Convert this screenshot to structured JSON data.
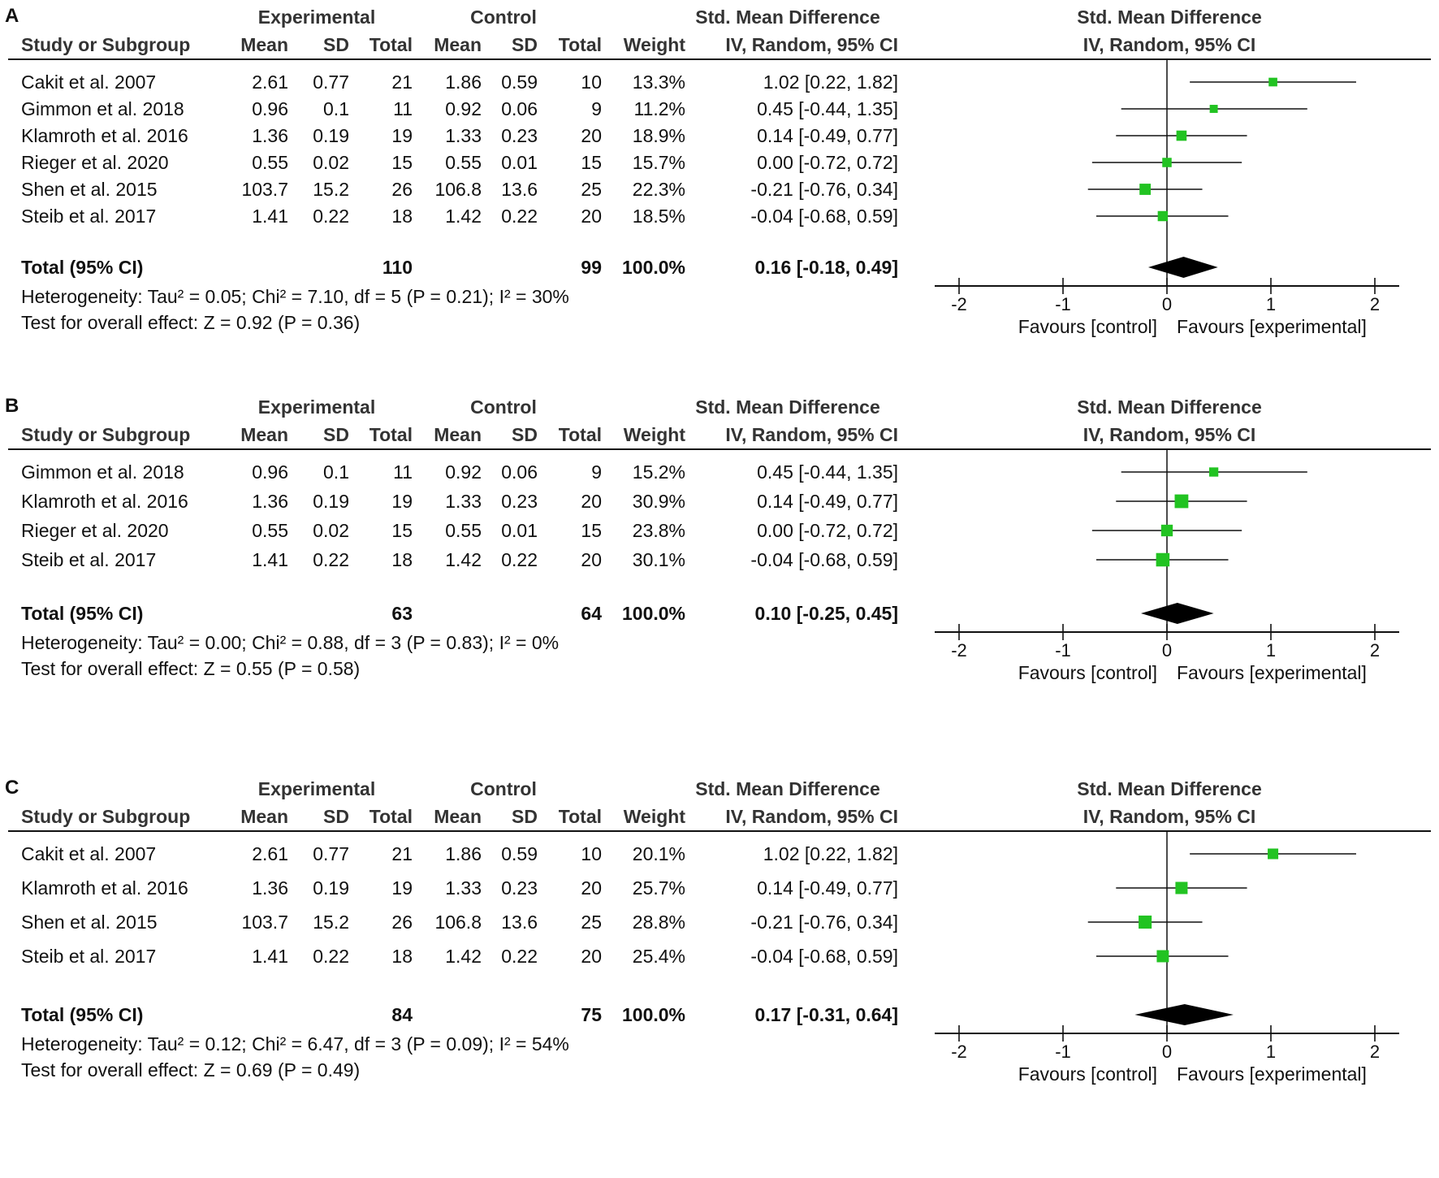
{
  "headers": {
    "experimental": "Experimental",
    "control": "Control",
    "smd_group": "Std. Mean Difference",
    "study": "Study or Subgroup",
    "mean": "Mean",
    "sd": "SD",
    "total": "Total",
    "weight": "Weight",
    "method": "IV, Random, 95% CI",
    "plot_title": "Std. Mean Difference",
    "plot_method": "IV, Random, 95% CI"
  },
  "colors": {
    "marker": "#22c322",
    "diamond": "#000000",
    "text": "#111111"
  },
  "chart_data": [
    {
      "type": "forest",
      "panel": "A",
      "xlim": [
        -2,
        2
      ],
      "ticks": [
        "-2",
        "-1",
        "0",
        "1",
        "2"
      ],
      "favours_left": "Favours [control]",
      "favours_right": "Favours [experimental]",
      "rows": [
        {
          "study": "Cakit et al. 2007",
          "e_mean": "2.61",
          "e_sd": "0.77",
          "e_total": "21",
          "c_mean": "1.86",
          "c_sd": "0.59",
          "c_total": "10",
          "weight": "13.3%",
          "ci_text": "1.02 [0.22, 1.82]",
          "est": 1.02,
          "lo": 0.22,
          "hi": 1.82
        },
        {
          "study": "Gimmon et al. 2018",
          "e_mean": "0.96",
          "e_sd": "0.1",
          "e_total": "11",
          "c_mean": "0.92",
          "c_sd": "0.06",
          "c_total": "9",
          "weight": "11.2%",
          "ci_text": "0.45 [-0.44, 1.35]",
          "est": 0.45,
          "lo": -0.44,
          "hi": 1.35
        },
        {
          "study": "Klamroth et al. 2016",
          "e_mean": "1.36",
          "e_sd": "0.19",
          "e_total": "19",
          "c_mean": "1.33",
          "c_sd": "0.23",
          "c_total": "20",
          "weight": "18.9%",
          "ci_text": "0.14 [-0.49, 0.77]",
          "est": 0.14,
          "lo": -0.49,
          "hi": 0.77
        },
        {
          "study": "Rieger et al. 2020",
          "e_mean": "0.55",
          "e_sd": "0.02",
          "e_total": "15",
          "c_mean": "0.55",
          "c_sd": "0.01",
          "c_total": "15",
          "weight": "15.7%",
          "ci_text": "0.00 [-0.72, 0.72]",
          "est": 0.0,
          "lo": -0.72,
          "hi": 0.72
        },
        {
          "study": "Shen et al. 2015",
          "e_mean": "103.7",
          "e_sd": "15.2",
          "e_total": "26",
          "c_mean": "106.8",
          "c_sd": "13.6",
          "c_total": "25",
          "weight": "22.3%",
          "ci_text": "-0.21 [-0.76, 0.34]",
          "est": -0.21,
          "lo": -0.76,
          "hi": 0.34
        },
        {
          "study": "Steib et al. 2017",
          "e_mean": "1.41",
          "e_sd": "0.22",
          "e_total": "18",
          "c_mean": "1.42",
          "c_sd": "0.22",
          "c_total": "20",
          "weight": "18.5%",
          "ci_text": "-0.04 [-0.68, 0.59]",
          "est": -0.04,
          "lo": -0.68,
          "hi": 0.59
        }
      ],
      "total": {
        "label": "Total (95% CI)",
        "e_total": "110",
        "c_total": "99",
        "weight": "100.0%",
        "ci_text": "0.16 [-0.18, 0.49]",
        "est": 0.16,
        "lo": -0.18,
        "hi": 0.49
      },
      "heterogeneity": "Heterogeneity: Tau² = 0.05; Chi² = 7.10, df = 5 (P = 0.21); I² = 30%",
      "overall": "Test for overall effect: Z = 0.92 (P = 0.36)"
    },
    {
      "type": "forest",
      "panel": "B",
      "xlim": [
        -2,
        2
      ],
      "ticks": [
        "-2",
        "-1",
        "0",
        "1",
        "2"
      ],
      "favours_left": "Favours [control]",
      "favours_right": "Favours [experimental]",
      "rows": [
        {
          "study": "Gimmon et al. 2018",
          "e_mean": "0.96",
          "e_sd": "0.1",
          "e_total": "11",
          "c_mean": "0.92",
          "c_sd": "0.06",
          "c_total": "9",
          "weight": "15.2%",
          "ci_text": "0.45 [-0.44, 1.35]",
          "est": 0.45,
          "lo": -0.44,
          "hi": 1.35
        },
        {
          "study": "Klamroth et al. 2016",
          "e_mean": "1.36",
          "e_sd": "0.19",
          "e_total": "19",
          "c_mean": "1.33",
          "c_sd": "0.23",
          "c_total": "20",
          "weight": "30.9%",
          "ci_text": "0.14 [-0.49, 0.77]",
          "est": 0.14,
          "lo": -0.49,
          "hi": 0.77
        },
        {
          "study": "Rieger et al. 2020",
          "e_mean": "0.55",
          "e_sd": "0.02",
          "e_total": "15",
          "c_mean": "0.55",
          "c_sd": "0.01",
          "c_total": "15",
          "weight": "23.8%",
          "ci_text": "0.00 [-0.72, 0.72]",
          "est": 0.0,
          "lo": -0.72,
          "hi": 0.72
        },
        {
          "study": "Steib et al. 2017",
          "e_mean": "1.41",
          "e_sd": "0.22",
          "e_total": "18",
          "c_mean": "1.42",
          "c_sd": "0.22",
          "c_total": "20",
          "weight": "30.1%",
          "ci_text": "-0.04 [-0.68, 0.59]",
          "est": -0.04,
          "lo": -0.68,
          "hi": 0.59
        }
      ],
      "total": {
        "label": "Total (95% CI)",
        "e_total": "63",
        "c_total": "64",
        "weight": "100.0%",
        "ci_text": "0.10 [-0.25, 0.45]",
        "est": 0.1,
        "lo": -0.25,
        "hi": 0.45
      },
      "heterogeneity": "Heterogeneity: Tau² = 0.00; Chi² = 0.88, df = 3 (P = 0.83); I² = 0%",
      "overall": "Test for overall effect: Z = 0.55 (P = 0.58)"
    },
    {
      "type": "forest",
      "panel": "C",
      "xlim": [
        -2,
        2
      ],
      "ticks": [
        "-2",
        "-1",
        "0",
        "1",
        "2"
      ],
      "favours_left": "Favours [control]",
      "favours_right": "Favours [experimental]",
      "rows": [
        {
          "study": "Cakit et al. 2007",
          "e_mean": "2.61",
          "e_sd": "0.77",
          "e_total": "21",
          "c_mean": "1.86",
          "c_sd": "0.59",
          "c_total": "10",
          "weight": "20.1%",
          "ci_text": "1.02 [0.22, 1.82]",
          "est": 1.02,
          "lo": 0.22,
          "hi": 1.82
        },
        {
          "study": "Klamroth et al. 2016",
          "e_mean": "1.36",
          "e_sd": "0.19",
          "e_total": "19",
          "c_mean": "1.33",
          "c_sd": "0.23",
          "c_total": "20",
          "weight": "25.7%",
          "ci_text": "0.14 [-0.49, 0.77]",
          "est": 0.14,
          "lo": -0.49,
          "hi": 0.77
        },
        {
          "study": "Shen et al. 2015",
          "e_mean": "103.7",
          "e_sd": "15.2",
          "e_total": "26",
          "c_mean": "106.8",
          "c_sd": "13.6",
          "c_total": "25",
          "weight": "28.8%",
          "ci_text": "-0.21 [-0.76, 0.34]",
          "est": -0.21,
          "lo": -0.76,
          "hi": 0.34
        },
        {
          "study": "Steib et al. 2017",
          "e_mean": "1.41",
          "e_sd": "0.22",
          "e_total": "18",
          "c_mean": "1.42",
          "c_sd": "0.22",
          "c_total": "20",
          "weight": "25.4%",
          "ci_text": "-0.04 [-0.68, 0.59]",
          "est": -0.04,
          "lo": -0.68,
          "hi": 0.59
        }
      ],
      "total": {
        "label": "Total (95% CI)",
        "e_total": "84",
        "c_total": "75",
        "weight": "100.0%",
        "ci_text": "0.17 [-0.31, 0.64]",
        "est": 0.17,
        "lo": -0.31,
        "hi": 0.64
      },
      "heterogeneity": "Heterogeneity: Tau² = 0.12; Chi² = 6.47, df = 3 (P = 0.09); I² = 54%",
      "overall": "Test for overall effect: Z = 0.69 (P = 0.49)"
    }
  ]
}
